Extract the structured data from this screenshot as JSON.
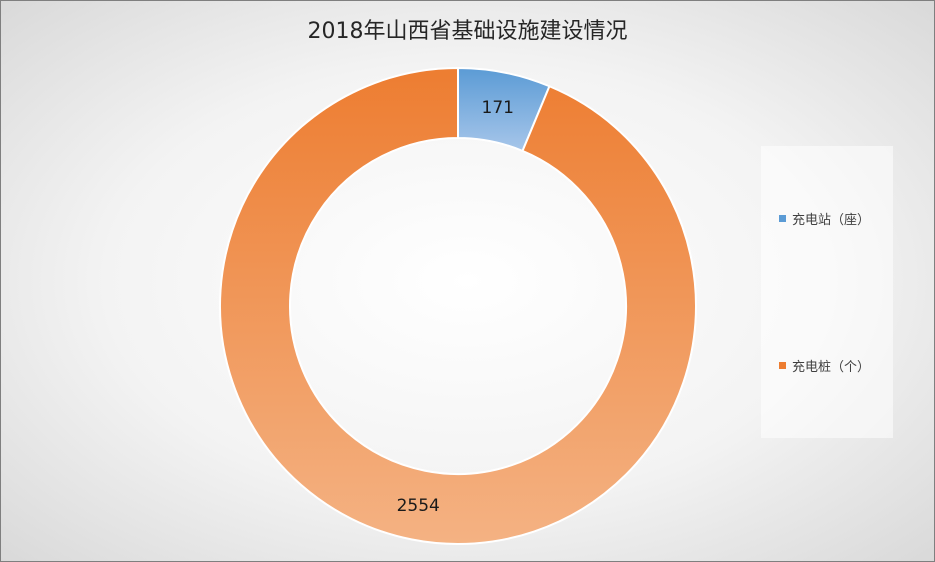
{
  "chart_data": {
    "type": "pie",
    "title": "2018年山西省基础设施建设情况",
    "categories": [
      "充电站（座）",
      "充电桩（个）"
    ],
    "values": [
      171,
      2554
    ],
    "data_labels": [
      "171",
      "2554"
    ],
    "colors": [
      "#5b9bd5",
      "#ed7d31"
    ],
    "donut": true,
    "legend": "right"
  }
}
